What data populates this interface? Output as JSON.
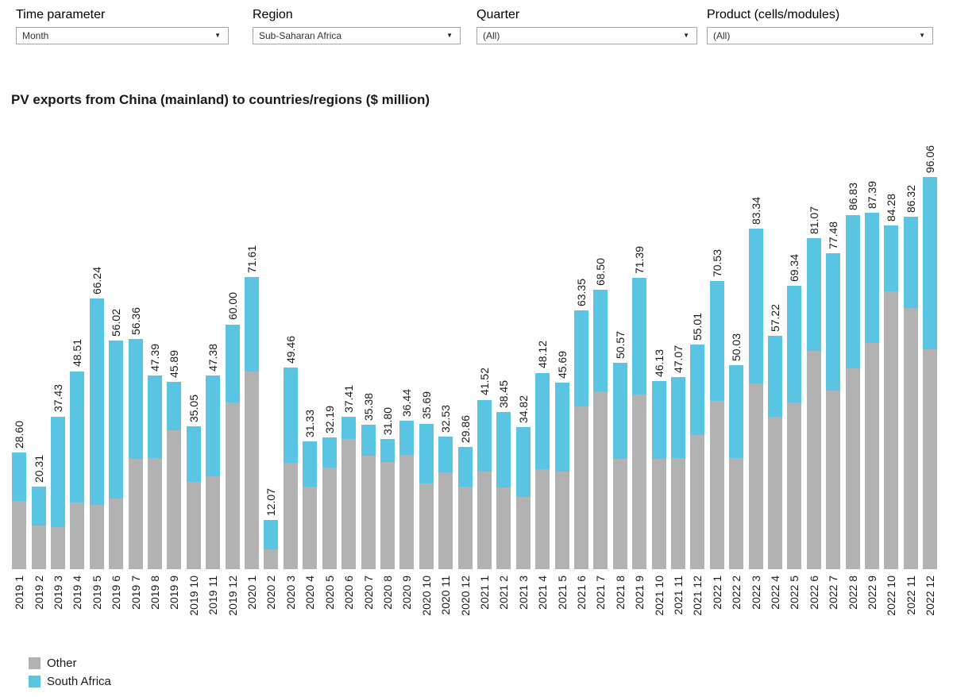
{
  "filters": [
    {
      "label": "Time parameter",
      "value": "Month"
    },
    {
      "label": "Region",
      "value": "Sub-Saharan Africa"
    },
    {
      "label": "Quarter",
      "value": "(All)"
    },
    {
      "label": "Product (cells/modules)",
      "value": "(All)"
    }
  ],
  "title": "PV exports from China (mainland) to countries/regions ($ million)",
  "chart_data": {
    "type": "bar",
    "stacked": true,
    "title": "PV exports from China (mainland) to countries/regions ($ million)",
    "unit": "$ million",
    "grid": false,
    "legend_position": "bottom-left",
    "categories": [
      "2019 1",
      "2019 2",
      "2019 3",
      "2019 4",
      "2019 5",
      "2019 6",
      "2019 7",
      "2019 8",
      "2019 9",
      "2019 10",
      "2019 11",
      "2019 12",
      "2020 1",
      "2020 2",
      "2020 3",
      "2020 4",
      "2020 5",
      "2020 6",
      "2020 7",
      "2020 8",
      "2020 9",
      "2020 10",
      "2020 11",
      "2020 12",
      "2021 1",
      "2021 2",
      "2021 3",
      "2021 4",
      "2021 5",
      "2021 6",
      "2021 7",
      "2021 8",
      "2021 9",
      "2021 10",
      "2021 11",
      "2021 12",
      "2022 1",
      "2022 2",
      "2022 3",
      "2022 4",
      "2022 5",
      "2022 6",
      "2022 7",
      "2022 8",
      "2022 9",
      "2022 10",
      "2022 11",
      "2022 12"
    ],
    "totals": [
      28.6,
      20.31,
      37.43,
      48.51,
      66.24,
      56.02,
      56.36,
      47.39,
      45.89,
      35.05,
      47.38,
      60.0,
      71.61,
      12.07,
      49.46,
      31.33,
      32.19,
      37.41,
      35.38,
      31.8,
      36.44,
      35.69,
      32.53,
      29.86,
      41.52,
      38.45,
      34.82,
      48.12,
      45.69,
      63.35,
      68.5,
      50.57,
      71.39,
      46.13,
      47.07,
      55.01,
      70.53,
      50.03,
      83.34,
      57.22,
      69.34,
      81.07,
      77.48,
      86.83,
      87.39,
      84.28,
      86.32,
      96.06
    ],
    "value_labels": [
      "28.60",
      "20.31",
      "37.43",
      "48.51",
      "66.24",
      "56.02",
      "56.36",
      "47.39",
      "45.89",
      "35.05",
      "47.38",
      "60.00",
      "71.61",
      "12.07",
      "49.46",
      "31.33",
      "32.19",
      "37.41",
      "35.38",
      "31.80",
      "36.44",
      "35.69",
      "32.53",
      "29.86",
      "41.52",
      "38.45",
      "34.82",
      "48.12",
      "45.69",
      "63.35",
      "68.50",
      "50.57",
      "71.39",
      "46.13",
      "47.07",
      "55.01",
      "70.53",
      "50.03",
      "83.34",
      "57.22",
      "69.34",
      "81.07",
      "77.48",
      "86.83",
      "87.39",
      "84.28",
      "86.32",
      "96.06"
    ],
    "series": [
      {
        "name": "Other",
        "color": "#b2b2b2",
        "values": [
          16.7,
          10.7,
          10.3,
          16.3,
          15.8,
          17.3,
          27.0,
          27.2,
          34.0,
          21.4,
          22.8,
          40.8,
          48.4,
          4.9,
          26.1,
          20.2,
          24.9,
          31.9,
          27.8,
          26.3,
          28.0,
          21.0,
          23.7,
          20.2,
          23.9,
          20.0,
          17.7,
          24.5,
          23.9,
          39.9,
          43.6,
          27.0,
          42.8,
          27.0,
          27.2,
          32.9,
          41.2,
          27.2,
          45.5,
          37.3,
          40.8,
          53.5,
          43.8,
          49.2,
          55.4,
          68.1,
          64.0,
          53.9
        ]
      },
      {
        "name": "South Africa",
        "color": "#59c5e3",
        "values": [
          11.9,
          9.61,
          27.13,
          32.21,
          50.44,
          38.72,
          29.36,
          20.19,
          11.89,
          13.65,
          24.58,
          19.2,
          23.21,
          7.17,
          23.36,
          11.13,
          7.29,
          5.51,
          7.58,
          5.5,
          8.44,
          14.69,
          8.83,
          9.66,
          17.62,
          18.45,
          17.12,
          23.62,
          21.79,
          23.45,
          24.9,
          23.57,
          28.59,
          19.13,
          19.87,
          22.11,
          29.33,
          22.83,
          37.84,
          19.92,
          28.54,
          27.57,
          33.68,
          37.63,
          31.99,
          16.18,
          22.32,
          42.16
        ]
      }
    ]
  },
  "legend": {
    "items": [
      {
        "label": "Other",
        "color": "#b2b2b2"
      },
      {
        "label": "South Africa",
        "color": "#59c5e3"
      }
    ]
  }
}
